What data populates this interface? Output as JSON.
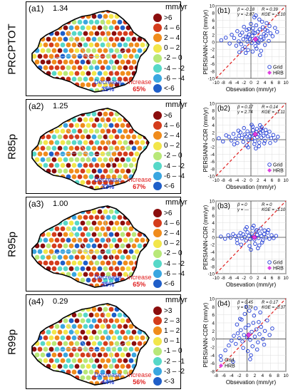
{
  "unit": "mm/yr",
  "colors": {
    "dark_red": "#8b0d0d",
    "red": "#d43c1c",
    "orange": "#f08c1c",
    "yellow": "#f2e64a",
    "light_green": "#b8e878",
    "cyan": "#56d8c8",
    "light_blue": "#3aa6e0",
    "blue": "#1f5ec8",
    "decrease": "#1f3bd6",
    "increase": "#e02020"
  },
  "panels": [
    {
      "label": "(a1)",
      "value": "1.34",
      "index": "PRCPTOT",
      "legend": [
        ">6",
        "4 – 6",
        "2 – 4",
        "0 – 2",
        "-2 – 0",
        "-4 – -2",
        "-6 – -4",
        "<-6"
      ],
      "decrease_label": "Decrease",
      "decrease_pct": "35%",
      "increase_label": "Increase",
      "increase_pct": "65%"
    },
    {
      "label": "(a2)",
      "value": "1.25",
      "index": "R85p",
      "legend": [
        ">6",
        "4 – 6",
        "2 – 4",
        "0 – 2",
        "-2 – 0",
        "-4 – -2",
        "-6 – -4",
        "<-6"
      ],
      "decrease_label": "Decrease",
      "decrease_pct": "33%",
      "increase_label": "Increase",
      "increase_pct": "67%"
    },
    {
      "label": "(a3)",
      "value": "1.00",
      "index": "R95p",
      "legend": [
        ">6",
        "4 – 6",
        "2 – 4",
        "0 – 2",
        "-2 – 0",
        "-4 – -2",
        "-6 – -4",
        "<-6"
      ],
      "decrease_label": "Decrease",
      "decrease_pct": "35%",
      "increase_label": "Increase",
      "increase_pct": "65%"
    },
    {
      "label": "(a4)",
      "value": "0.29",
      "index": "R99p",
      "legend": [
        ">3",
        "2 – 3",
        "1 – 2",
        "0 – 1",
        "-1 – 0",
        "-2 – -1",
        "-3 – -2",
        "<-3"
      ],
      "decrease_label": "Decrease",
      "decrease_pct": "44%",
      "increase_label": "Increase",
      "increase_pct": "56%"
    }
  ],
  "chart_data": [
    {
      "type": "scatter",
      "label": "(b1)",
      "xlabel": "Obsevation (mm/yr)",
      "ylabel": "PERSIANN-CDR (mm/yr)",
      "xlim": [
        -10,
        10
      ],
      "ylim": [
        -10,
        10
      ],
      "xticks": [
        -10,
        -8,
        -6,
        -4,
        -2,
        0,
        2,
        4,
        6,
        8,
        10
      ],
      "yticks": [
        -10,
        -8,
        -6,
        -4,
        -2,
        0,
        2,
        4,
        6,
        8,
        10
      ],
      "stats": [
        "β = -0.18",
        "γ = -2.87",
        "R = 0.39",
        "KGE = -3.10"
      ],
      "legend": [
        "Grid",
        "HRB"
      ],
      "grid_points": {
        "x": [
          -8.5,
          -7.2,
          -6.1,
          -5.5,
          -4.8,
          -4.2,
          -3.9,
          -3.5,
          -3.1,
          -2.8,
          -2.5,
          -2.2,
          -2.0,
          -1.7,
          -1.4,
          -1.2,
          -1.0,
          -0.8,
          -0.5,
          -0.3,
          0.0,
          0.2,
          0.4,
          0.6,
          0.9,
          1.1,
          1.3,
          1.5,
          1.8,
          2.0,
          2.2,
          2.5,
          2.8,
          3.1,
          3.4,
          3.7,
          4.0,
          4.3,
          4.7,
          5.1,
          5.6,
          6.2,
          6.9,
          7.5,
          -1.5,
          0.5,
          1.6,
          2.4,
          3.2,
          -0.6,
          1.0,
          2.9,
          4.5,
          -2.4,
          0.7,
          1.9,
          3.6,
          5.3,
          -3.3,
          -0.9,
          1.4,
          2.6,
          4.1
        ],
        "y": [
          0.5,
          1.2,
          -0.4,
          2.0,
          1.1,
          -1.0,
          3.0,
          0.2,
          1.9,
          -0.6,
          2.6,
          0.8,
          4.2,
          -1.4,
          1.5,
          3.3,
          0.1,
          -2.2,
          2.1,
          0.9,
          5.0,
          -0.3,
          1.7,
          3.8,
          0.4,
          2.5,
          -1.1,
          4.6,
          1.0,
          2.9,
          -0.2,
          3.5,
          1.4,
          0.6,
          4.1,
          2.2,
          -0.8,
          1.8,
          3.1,
          0.3,
          2.4,
          1.6,
          3.9,
          2.8,
          -3.0,
          -2.6,
          -1.8,
          6.2,
          5.6,
          3.6,
          6.8,
          -2.4,
          5.2,
          -1.9,
          2.7,
          0.0,
          0.9,
          4.4,
          -2.8,
          1.3,
          7.3,
          -3.6,
          3.4
        ]
      },
      "hrb_point": {
        "x": 1.3,
        "y": 0.8
      }
    },
    {
      "type": "scatter",
      "label": "(b2)",
      "xlabel": "Obsevation (mm/yr)",
      "ylabel": "PERSIANN-CDR (mm/yr)",
      "xlim": [
        -10,
        10
      ],
      "ylim": [
        -10,
        10
      ],
      "xticks": [
        -10,
        -8,
        -6,
        -4,
        -2,
        0,
        2,
        4,
        6,
        8,
        10
      ],
      "yticks": [
        -10,
        -8,
        -6,
        -4,
        -2,
        0,
        2,
        4,
        6,
        8,
        10
      ],
      "stats": [
        "β = 0.17",
        "γ = 2.74",
        "R = 0.14",
        "KGE = -1.11"
      ],
      "legend": [
        "Grid",
        "HRB"
      ],
      "grid_points": {
        "x": [
          -9.2,
          -8.0,
          -7.1,
          -6.3,
          -5.6,
          -5.0,
          -4.4,
          -3.9,
          -3.4,
          -3.0,
          -2.6,
          -2.2,
          -1.8,
          -1.4,
          -1.0,
          -0.7,
          -0.3,
          0.0,
          0.3,
          0.6,
          0.9,
          1.2,
          1.5,
          1.8,
          2.1,
          2.4,
          2.7,
          3.0,
          3.3,
          3.6,
          4.0,
          4.4,
          4.8,
          5.3,
          5.8,
          6.4,
          7.0,
          7.7,
          -2.0,
          0.5,
          1.7,
          2.9,
          4.2,
          -3.6,
          -1.2,
          1.0,
          2.3,
          3.8,
          5.5,
          -4.8,
          0.2,
          2.6,
          -0.8,
          1.4,
          3.1
        ],
        "y": [
          0.4,
          -0.5,
          1.2,
          0.8,
          -0.2,
          1.6,
          0.3,
          -0.9,
          1.1,
          2.0,
          0.5,
          -0.6,
          1.4,
          0.9,
          2.3,
          -0.1,
          1.0,
          1.7,
          0.2,
          2.6,
          1.3,
          -0.4,
          2.1,
          0.7,
          1.5,
          -0.8,
          1.9,
          0.6,
          2.4,
          1.1,
          -0.3,
          1.8,
          0.9,
          2.2,
          0.4,
          1.3,
          -0.2,
          0.8,
          3.2,
          3.6,
          3.0,
          2.9,
          2.7,
          2.5,
          -1.6,
          -1.2,
          -1.8,
          -1.0,
          -0.9,
          -1.3,
          4.1,
          4.0,
          -2.1,
          -2.4,
          3.4
        ],
        "outliers": true
      },
      "hrb_point": {
        "x": 1.25,
        "y": 1.5
      }
    },
    {
      "type": "scatter",
      "label": "(b3)",
      "xlabel": "Obsevation (mm/yr)",
      "ylabel": "PERSIANN-CDR (mm/yr)",
      "xlim": [
        -10,
        10
      ],
      "ylim": [
        -10,
        10
      ],
      "xticks": [
        -10,
        -8,
        -6,
        -4,
        -2,
        0,
        2,
        4,
        6,
        8,
        10
      ],
      "yticks": [
        -10,
        -8,
        -6,
        -4,
        -2,
        0,
        2,
        4,
        6,
        8,
        10
      ],
      "stats": [
        "β = 0",
        "γ = ---",
        "R = 0",
        "KGE = -3.10"
      ],
      "legend": [
        "Grid",
        "HRB"
      ],
      "grid_points": {
        "x": [
          -8.6,
          -7.4,
          -6.5,
          -5.8,
          -5.1,
          -4.5,
          -4.0,
          -3.5,
          -3.0,
          -2.6,
          -2.2,
          -1.8,
          -1.4,
          -1.0,
          -0.6,
          -0.2,
          0.2,
          0.6,
          1.0,
          1.4,
          1.8,
          2.2,
          2.6,
          3.0,
          3.4,
          3.8,
          4.3,
          4.8,
          5.3,
          5.9,
          6.5,
          7.2,
          -1.6,
          0.4,
          1.6,
          2.8,
          -2.8,
          -0.4,
          1.2,
          2.4,
          3.9,
          -3.9,
          0.8,
          2.0,
          -1.2,
          0.0,
          3.2,
          5.0
        ],
        "y": [
          0.2,
          -0.4,
          0.6,
          -0.1,
          0.9,
          0.3,
          -0.7,
          0.5,
          1.2,
          -0.3,
          0.8,
          0.1,
          -0.9,
          1.4,
          0.4,
          -0.5,
          1.0,
          0.2,
          -0.6,
          1.6,
          0.7,
          -0.2,
          1.1,
          0.3,
          -0.8,
          0.9,
          0.0,
          1.3,
          -0.4,
          0.6,
          -0.2,
          0.4,
          2.2,
          2.6,
          2.0,
          2.4,
          -2.0,
          -2.4,
          -1.8,
          -2.2,
          1.9,
          -1.6,
          3.2,
          -3.0,
          2.8,
          -3.4,
          -1.4,
          2.0
        ]
      },
      "hrb_point": {
        "x": 1.0,
        "y": 0.0
      }
    },
    {
      "type": "scatter",
      "label": "(b4)",
      "xlabel": "Obsevation (mm/yr)",
      "ylabel": "PERSIANN-CDR (mm/yr)",
      "xlim": [
        -8,
        10
      ],
      "ylim": [
        -8,
        10
      ],
      "xticks": [
        -8,
        -6,
        -4,
        -2,
        0,
        2,
        4,
        6,
        8,
        10
      ],
      "yticks": [
        -8,
        -6,
        -4,
        -2,
        0,
        2,
        4,
        6,
        8,
        10
      ],
      "stats": [
        "β = 0.45",
        "γ = 1.79",
        "R = 0.17",
        "KGE = -0.37"
      ],
      "legend": [
        "Grid",
        "HRB"
      ],
      "grid_points": {
        "x": [
          -6.8,
          -5.6,
          -4.7,
          -4.0,
          -3.4,
          -2.9,
          -2.4,
          -2.0,
          -1.6,
          -1.2,
          -0.8,
          -0.4,
          0.0,
          0.4,
          0.8,
          1.2,
          1.6,
          2.0,
          2.4,
          2.8,
          3.2,
          3.6,
          4.1,
          4.6,
          5.2,
          5.8,
          6.5,
          -1.8,
          -0.6,
          0.6,
          1.8,
          3.0,
          -2.6,
          -1.0,
          0.2,
          1.4,
          2.6,
          4.4,
          -3.6,
          -0.2,
          1.0,
          2.2,
          0.8,
          -1.4,
          3.4
        ],
        "y": [
          -4.2,
          -2.8,
          -1.6,
          -0.4,
          0.8,
          -1.2,
          1.4,
          0.2,
          2.2,
          -0.6,
          1.0,
          2.8,
          0.4,
          3.4,
          -0.2,
          1.8,
          4.0,
          0.6,
          2.4,
          -0.8,
          1.2,
          3.0,
          0.0,
          2.0,
          4.6,
          1.0,
          2.6,
          5.0,
          6.2,
          7.0,
          5.8,
          4.2,
          3.6,
          -2.2,
          -3.0,
          -1.8,
          -2.6,
          -1.4,
          -5.6,
          8.0,
          -4.0,
          7.6,
          -5.0,
          4.8,
          6.6
        ]
      },
      "hrb_point": {
        "x": 0.4,
        "y": 1.0
      }
    }
  ]
}
